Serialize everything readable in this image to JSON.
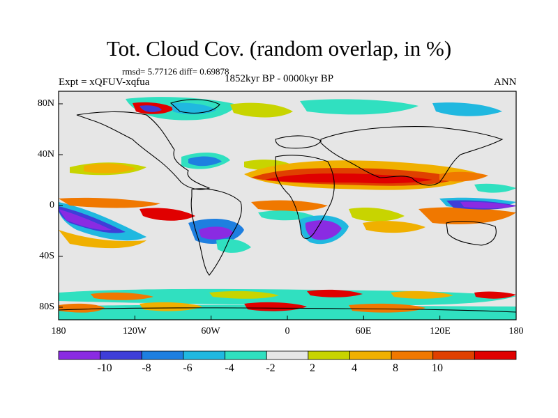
{
  "header": {
    "title": "Tot. Cloud Cov. (random overlap, in %)",
    "stats": "rmsd= 5.77126 diff= 0.69878",
    "experiment": "Expt = xQFUV-xqfua",
    "period": "1852kyr BP - 0000kyr BP",
    "season": "ANN"
  },
  "axes": {
    "lat_labels": [
      "80N",
      "40N",
      "0",
      "40S",
      "80S"
    ],
    "lon_labels": [
      "180",
      "120W",
      "60W",
      "0",
      "60E",
      "120E",
      "180"
    ]
  },
  "colorbar": {
    "labels": [
      "-10",
      "-8",
      "-6",
      "-4",
      "-2",
      "2",
      "4",
      "8",
      "10"
    ],
    "colors": [
      "#8a2be2",
      "#3e3ed8",
      "#1e7fe0",
      "#20b8e0",
      "#30e0c0",
      "#e6e6e6",
      "#c8d400",
      "#f0b000",
      "#f07800",
      "#e04000",
      "#e00000"
    ]
  },
  "colors": {
    "background": "#e6e6e6",
    "land": "#000000"
  }
}
